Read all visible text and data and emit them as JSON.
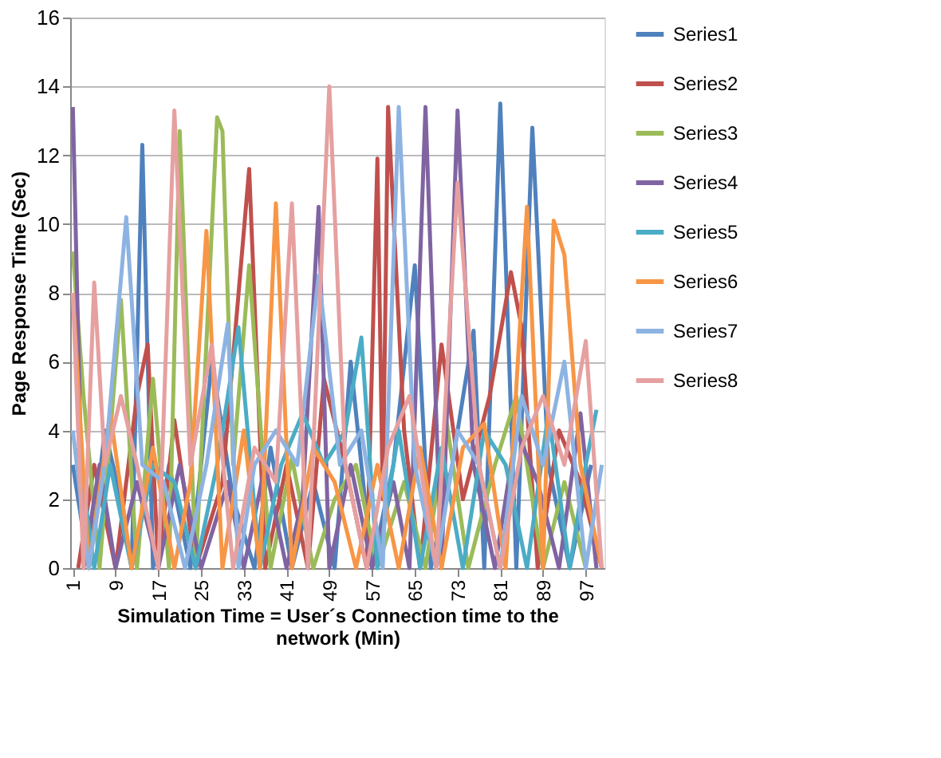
{
  "chart_data": {
    "type": "line",
    "xlabel": "Simulation Time = User´s Connection time to the network (Min)",
    "ylabel": "Page Response Time (Sec)",
    "xlim": [
      0.5,
      100.5
    ],
    "xticks": [
      1,
      9,
      17,
      25,
      33,
      41,
      49,
      57,
      65,
      73,
      81,
      89,
      97
    ],
    "ylim": [
      0,
      16
    ],
    "yticks": [
      0,
      2,
      4,
      6,
      8,
      10,
      12,
      14,
      16
    ],
    "grid": "y",
    "legend": "right",
    "marker": "none",
    "line_style": "solid",
    "series": [
      {
        "name": "Series1",
        "color": "#4f81bd",
        "x": [
          1,
          4,
          7,
          10,
          12,
          14,
          16,
          19,
          23,
          27,
          31,
          35,
          38,
          42,
          46,
          50,
          53,
          57,
          61,
          65,
          68,
          72,
          76,
          78,
          81,
          84,
          87,
          90,
          94,
          98
        ],
        "values": [
          3,
          0,
          4,
          2,
          0,
          12.3,
          0,
          3,
          0,
          6,
          2,
          0,
          3.5,
          0,
          2.5,
          0,
          6,
          0,
          3,
          8.8,
          0,
          3,
          6.9,
          0,
          13.5,
          0,
          12.8,
          3,
          0,
          3
        ]
      },
      {
        "name": "Series2",
        "color": "#c0504d",
        "x": [
          2,
          5,
          9,
          13,
          15,
          17,
          20,
          24,
          29,
          34,
          37,
          41,
          45,
          48,
          52,
          56,
          58,
          59,
          60,
          63,
          66,
          70,
          74,
          79,
          83,
          85,
          88,
          92,
          96,
          100
        ],
        "values": [
          0,
          3,
          0,
          5,
          6.5,
          0,
          4.3,
          0,
          2.5,
          11.6,
          0,
          3,
          0,
          5.5,
          3,
          0,
          11.9,
          2,
          13.4,
          4,
          0,
          6.5,
          2,
          5,
          8.6,
          7,
          0,
          4,
          2.5,
          0
        ]
      },
      {
        "name": "Series3",
        "color": "#9bbb59",
        "x": [
          1,
          3,
          6,
          10,
          13,
          16,
          19,
          21,
          24,
          28,
          29,
          31,
          34,
          38,
          42,
          46,
          50,
          54,
          58,
          63,
          67,
          71,
          75,
          80,
          84,
          89,
          93,
          97
        ],
        "values": [
          9.2,
          5,
          0,
          7.8,
          0,
          5.5,
          0,
          12.7,
          0,
          13.1,
          12.7,
          3,
          8.8,
          0,
          3.2,
          0,
          2,
          3,
          0,
          2.5,
          0,
          4.2,
          0,
          3,
          5,
          0,
          2.5,
          0
        ]
      },
      {
        "name": "Series4",
        "color": "#8064a2",
        "x": [
          1,
          3,
          6,
          9,
          13,
          17,
          21,
          25,
          30,
          33,
          37,
          41,
          44,
          47,
          49,
          53,
          57,
          61,
          64,
          67,
          70,
          73,
          76,
          80,
          84,
          88,
          92,
          96,
          99
        ],
        "values": [
          13.4,
          0,
          3,
          0,
          2.5,
          0,
          3,
          0,
          2.5,
          0,
          3,
          0,
          2,
          10.5,
          0,
          3,
          0,
          2.5,
          0,
          13.4,
          0,
          13.3,
          3,
          0,
          4,
          2.5,
          0,
          4.5,
          0
        ]
      },
      {
        "name": "Series5",
        "color": "#4bacc6",
        "x": [
          2,
          5,
          8,
          12,
          16,
          20,
          24,
          28,
          32,
          36,
          40,
          44,
          48,
          52,
          55,
          58,
          62,
          66,
          70,
          74,
          78,
          82,
          86,
          90,
          94,
          97,
          99
        ],
        "values": [
          3.5,
          0,
          3,
          0,
          3,
          2.5,
          0,
          3,
          7,
          0,
          3,
          4.5,
          3,
          4,
          6.7,
          0,
          4,
          0,
          3.5,
          0,
          4,
          3,
          0,
          4.5,
          0,
          3,
          4.6
        ]
      },
      {
        "name": "Series6",
        "color": "#f79646",
        "x": [
          1,
          4,
          8,
          12,
          16,
          20,
          23,
          26,
          29,
          33,
          36,
          39,
          42,
          46,
          50,
          54,
          58,
          62,
          66,
          70,
          74,
          78,
          82,
          86,
          89,
          91,
          93,
          96,
          100
        ],
        "values": [
          8,
          0,
          4.5,
          0,
          3.5,
          0,
          2.5,
          9.8,
          0,
          4,
          0,
          10.6,
          0,
          3.5,
          2.5,
          0,
          3,
          0,
          3.5,
          0,
          3.5,
          4.2,
          0,
          10.5,
          0,
          10.1,
          9.1,
          3,
          0
        ]
      },
      {
        "name": "Series7",
        "color": "#8db3e2",
        "x": [
          1,
          4,
          7,
          11,
          14,
          18,
          22,
          26,
          30,
          32,
          35,
          39,
          43,
          47,
          51,
          55,
          59,
          62,
          65,
          69,
          73,
          77,
          81,
          85,
          89,
          93,
          97,
          100
        ],
        "values": [
          4,
          0,
          3,
          10.2,
          3,
          2.5,
          0,
          3,
          7.1,
          0,
          3,
          4,
          3,
          8.5,
          3,
          4,
          0,
          13.4,
          3,
          0,
          4,
          3,
          0,
          5,
          3,
          6,
          0,
          3
        ]
      },
      {
        "name": "Series8",
        "color": "#e6a0a0",
        "x": [
          1,
          3,
          5,
          7,
          10,
          13,
          17,
          20,
          23,
          27,
          31,
          35,
          39,
          42,
          45,
          49,
          52,
          56,
          60,
          64,
          69,
          73,
          77,
          81,
          85,
          89,
          93,
          97,
          100
        ],
        "values": [
          8,
          0,
          8.3,
          3,
          5,
          3,
          0,
          13.3,
          3,
          6.5,
          0,
          3.5,
          2.5,
          10.6,
          0,
          14,
          3,
          0,
          3.5,
          5,
          0,
          11.2,
          3,
          0,
          3.5,
          5,
          3,
          6.6,
          0
        ]
      }
    ]
  }
}
